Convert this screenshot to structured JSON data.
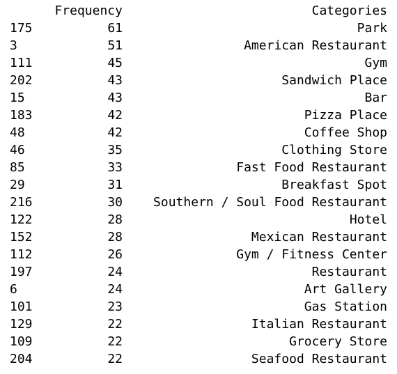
{
  "table": {
    "headers": {
      "index": "",
      "frequency": "Frequency",
      "categories": "Categories"
    },
    "rows": [
      {
        "index": "175",
        "frequency": "61",
        "category": "Park"
      },
      {
        "index": "3",
        "frequency": "51",
        "category": "American Restaurant"
      },
      {
        "index": "111",
        "frequency": "45",
        "category": "Gym"
      },
      {
        "index": "202",
        "frequency": "43",
        "category": "Sandwich Place"
      },
      {
        "index": "15",
        "frequency": "43",
        "category": "Bar"
      },
      {
        "index": "183",
        "frequency": "42",
        "category": "Pizza Place"
      },
      {
        "index": "48",
        "frequency": "42",
        "category": "Coffee Shop"
      },
      {
        "index": "46",
        "frequency": "35",
        "category": "Clothing Store"
      },
      {
        "index": "85",
        "frequency": "33",
        "category": "Fast Food Restaurant"
      },
      {
        "index": "29",
        "frequency": "31",
        "category": "Breakfast Spot"
      },
      {
        "index": "216",
        "frequency": "30",
        "category": "Southern / Soul Food Restaurant"
      },
      {
        "index": "122",
        "frequency": "28",
        "category": "Hotel"
      },
      {
        "index": "152",
        "frequency": "28",
        "category": "Mexican Restaurant"
      },
      {
        "index": "112",
        "frequency": "26",
        "category": "Gym / Fitness Center"
      },
      {
        "index": "197",
        "frequency": "24",
        "category": "Restaurant"
      },
      {
        "index": "6",
        "frequency": "24",
        "category": "Art Gallery"
      },
      {
        "index": "101",
        "frequency": "23",
        "category": "Gas Station"
      },
      {
        "index": "129",
        "frequency": "22",
        "category": "Italian Restaurant"
      },
      {
        "index": "109",
        "frequency": "22",
        "category": "Grocery Store"
      },
      {
        "index": "204",
        "frequency": "22",
        "category": "Seafood Restaurant"
      }
    ]
  }
}
